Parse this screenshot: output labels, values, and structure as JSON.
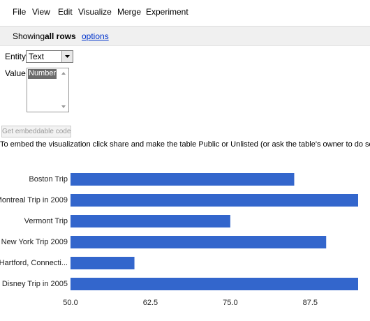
{
  "menu": [
    "File",
    "View",
    "Edit",
    "Visualize",
    "Merge",
    "Experiment"
  ],
  "status": {
    "prefix": "Showing",
    "emphasis": "all rows",
    "link": "options"
  },
  "form": {
    "entity_label": "Entity",
    "entity_value": "Text",
    "value_label": "Value",
    "value_options": [
      "Number"
    ],
    "button": "Get embeddable code",
    "instruction": "To embed the visualization click share and make the table Public or Unlisted (or ask the table's owner to do so)"
  },
  "chart_data": {
    "type": "bar",
    "orientation": "horizontal",
    "categories": [
      "Boston Trip",
      "Montreal Trip in 2009",
      "Vermont Trip",
      "New York Trip 2009",
      "Hartford, Connecti...",
      "Disney Trip in 2005"
    ],
    "values": [
      85,
      95,
      75,
      90,
      60,
      95
    ],
    "color": "#3366cc",
    "xlim": [
      50,
      95
    ],
    "xticks": [
      {
        "value": 50,
        "label": "50.0"
      },
      62.5,
      {
        "value": 75,
        "label": "75.0"
      },
      87.5
    ],
    "grid": false
  }
}
